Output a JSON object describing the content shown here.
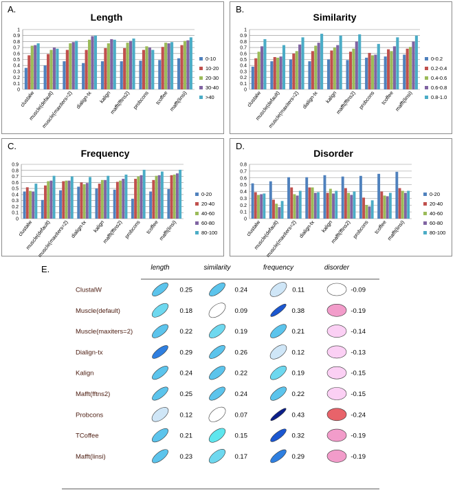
{
  "figure": {
    "panel_labels": [
      "A.",
      "B.",
      "C.",
      "D.",
      "E."
    ]
  },
  "colors": {
    "series": [
      "#4f81bd",
      "#c0504d",
      "#9bbb59",
      "#8064a2",
      "#4bacc6"
    ],
    "grid": "#8c8c8c",
    "border": "#8a8a8a",
    "text": "#000000",
    "method_text": "#4a1a0e",
    "table_rule": "#555555"
  },
  "chart_data": [
    {
      "type": "bar",
      "title": "Length",
      "categories": [
        "clustalw",
        "muscle(default)",
        "muscle(maxiters=2)",
        "dialign-tx",
        "kalign",
        "mafft(fftns2)",
        "probcons",
        "tcoffee",
        "mafft(linsi)"
      ],
      "ylim": [
        0,
        1
      ],
      "yticks": [
        "0",
        "0.1",
        "0.2",
        "0.3",
        "0.4",
        "0.5",
        "0.6",
        "0.7",
        "0.8",
        "0.9",
        "1"
      ],
      "series": [
        {
          "name": "0-10",
          "values": [
            0.36,
            0.4,
            0.47,
            0.44,
            0.47,
            0.47,
            0.48,
            0.49,
            0.52
          ]
        },
        {
          "name": "10-20",
          "values": [
            0.57,
            0.59,
            0.66,
            0.66,
            0.69,
            0.69,
            0.66,
            0.71,
            0.74
          ]
        },
        {
          "name": "20-30",
          "values": [
            0.73,
            0.66,
            0.77,
            0.83,
            0.77,
            0.78,
            0.72,
            0.78,
            0.81
          ]
        },
        {
          "name": "30-40",
          "values": [
            0.74,
            0.7,
            0.79,
            0.89,
            0.84,
            0.81,
            0.7,
            0.77,
            0.82
          ]
        },
        {
          "name": ">40",
          "values": [
            0.77,
            0.68,
            0.81,
            0.9,
            0.83,
            0.85,
            0.66,
            0.79,
            0.87
          ]
        }
      ]
    },
    {
      "type": "bar",
      "title": "Similarity",
      "categories": [
        "clustalw",
        "muscle(default)",
        "muscle(maxiters=2)",
        "dialign-tx",
        "kalign",
        "mafft(fftns2)",
        "probcons",
        "tcoffee",
        "mafft(linsi)"
      ],
      "ylim": [
        0,
        1
      ],
      "yticks": [
        "0",
        "0.1",
        "0.2",
        "0.3",
        "0.4",
        "0.5",
        "0.6",
        "0.7",
        "0.8",
        "0.9",
        "1"
      ],
      "series": [
        {
          "name": "0-0.2",
          "values": [
            0.38,
            0.47,
            0.5,
            0.47,
            0.5,
            0.49,
            0.53,
            0.55,
            0.58
          ]
        },
        {
          "name": "0.2-0.4",
          "values": [
            0.52,
            0.54,
            0.6,
            0.64,
            0.65,
            0.63,
            0.61,
            0.67,
            0.68
          ]
        },
        {
          "name": "0.4-0.6",
          "values": [
            0.63,
            0.53,
            0.64,
            0.73,
            0.7,
            0.68,
            0.57,
            0.64,
            0.71
          ]
        },
        {
          "name": "0.6-0.8",
          "values": [
            0.72,
            0.55,
            0.75,
            0.78,
            0.74,
            0.8,
            0.58,
            0.72,
            0.8
          ]
        },
        {
          "name": "0.8-1.0",
          "values": [
            0.84,
            0.74,
            0.87,
            0.93,
            0.9,
            0.92,
            0.76,
            0.87,
            0.9
          ]
        }
      ]
    },
    {
      "type": "bar",
      "title": "Frequency",
      "categories": [
        "clustalw",
        "muscle(default)",
        "muscle(maxiters=2)",
        "dialign-tx",
        "kalign",
        "mafft(fftns2)",
        "probcons",
        "tcoffee",
        "mafft(linsi)"
      ],
      "ylim": [
        0,
        0.9
      ],
      "yticks": [
        "0",
        "0.1",
        "0.2",
        "0.3",
        "0.4",
        "0.5",
        "0.6",
        "0.7",
        "0.8",
        "0.9"
      ],
      "series": [
        {
          "name": "0-20",
          "values": [
            0.45,
            0.31,
            0.47,
            0.53,
            0.5,
            0.48,
            0.33,
            0.45,
            0.49
          ]
        },
        {
          "name": "20-40",
          "values": [
            0.52,
            0.55,
            0.62,
            0.6,
            0.58,
            0.61,
            0.66,
            0.64,
            0.72
          ]
        },
        {
          "name": "40-60",
          "values": [
            0.46,
            0.62,
            0.63,
            0.57,
            0.64,
            0.63,
            0.7,
            0.71,
            0.73
          ]
        },
        {
          "name": "60-80",
          "values": [
            0.45,
            0.63,
            0.63,
            0.59,
            0.64,
            0.66,
            0.72,
            0.72,
            0.75
          ]
        },
        {
          "name": "80-100",
          "values": [
            0.58,
            0.71,
            0.7,
            0.69,
            0.71,
            0.73,
            0.81,
            0.78,
            0.81
          ]
        }
      ]
    },
    {
      "type": "bar",
      "title": "Disorder",
      "categories": [
        "clustalw",
        "muscle(default)",
        "muscle(maxiters=2)",
        "dialign-tx",
        "kalign",
        "mafft(fftns2)",
        "probcons",
        "tcoffee",
        "mafft(linsi)"
      ],
      "ylim": [
        0,
        0.8
      ],
      "yticks": [
        "0",
        "0.1",
        "0.2",
        "0.3",
        "0.4",
        "0.5",
        "0.6",
        "0.7",
        "0.8"
      ],
      "series": [
        {
          "name": "0-20",
          "values": [
            0.52,
            0.55,
            0.61,
            0.61,
            0.64,
            0.62,
            0.63,
            0.66,
            0.69
          ]
        },
        {
          "name": "20-40",
          "values": [
            0.39,
            0.28,
            0.46,
            0.46,
            0.38,
            0.45,
            0.31,
            0.4,
            0.45
          ]
        },
        {
          "name": "40-60",
          "values": [
            0.35,
            0.22,
            0.36,
            0.46,
            0.44,
            0.38,
            0.2,
            0.34,
            0.41
          ]
        },
        {
          "name": "60-80",
          "values": [
            0.36,
            0.17,
            0.34,
            0.38,
            0.37,
            0.35,
            0.18,
            0.33,
            0.38
          ]
        },
        {
          "name": "80-100",
          "values": [
            0.37,
            0.26,
            0.41,
            0.39,
            0.41,
            0.4,
            0.27,
            0.38,
            0.41
          ]
        }
      ]
    },
    {
      "type": "table",
      "columns": [
        "length",
        "similarity",
        "frequency",
        "disorder"
      ],
      "rows": [
        {
          "method": "ClustalW",
          "values": [
            0.25,
            0.24,
            0.11,
            -0.09
          ]
        },
        {
          "method": "Muscle(default)",
          "values": [
            0.18,
            0.09,
            0.38,
            -0.19
          ]
        },
        {
          "method": "Muscle(maxiters=2)",
          "values": [
            0.22,
            0.19,
            0.21,
            -0.14
          ]
        },
        {
          "method": "Dialign-tx",
          "values": [
            0.29,
            0.26,
            0.12,
            -0.13
          ]
        },
        {
          "method": "Kalign",
          "values": [
            0.24,
            0.22,
            0.19,
            -0.15
          ]
        },
        {
          "method": "Mafft(fftns2)",
          "values": [
            0.25,
            0.24,
            0.22,
            -0.15
          ]
        },
        {
          "method": "Probcons",
          "values": [
            0.12,
            0.07,
            0.43,
            -0.24
          ]
        },
        {
          "method": "TCoffee",
          "values": [
            0.21,
            0.15,
            0.32,
            -0.19
          ]
        },
        {
          "method": "Mafft(linsi)",
          "values": [
            0.23,
            0.17,
            0.29,
            -0.19
          ]
        }
      ],
      "value_labels": [
        [
          "0.25",
          "0.24",
          "0.11",
          "-0.09"
        ],
        [
          "0.18",
          "0.09",
          "0.38",
          "-0.19"
        ],
        [
          "0.22",
          "0.19",
          "0.21",
          "-0.14"
        ],
        [
          "0.29",
          "0.26",
          "0.12",
          "-0.13"
        ],
        [
          "0.24",
          "0.22",
          "0.19",
          "-0.15"
        ],
        [
          "0.25",
          "0.24",
          "0.22",
          "-0.15"
        ],
        [
          "0.12",
          "0.07",
          "0.43",
          "-0.24"
        ],
        [
          "0.21",
          "0.15",
          "0.32",
          "-0.19"
        ],
        [
          "0.23",
          "0.17",
          "0.29",
          "-0.19"
        ]
      ]
    }
  ]
}
